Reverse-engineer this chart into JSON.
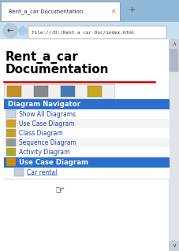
{
  "tab_title": "Rent_a_car Documentation",
  "url": "file:///D:/Rent a car Doc/index.html",
  "page_title_line1": "Rent_a_car",
  "page_title_line2": "Documentation",
  "red_line_color": "#cc0000",
  "browser_bg": "#aaccee",
  "tab_active_color": "#ffffff",
  "tab_bar_bg": "#90b8d8",
  "nav_bar_bg": "#c8dff0",
  "page_bg": "#ffffff",
  "section_header_bg": "#2b6fce",
  "section_header_text": "#ffffff",
  "section_header_label": "Diagram Navigator",
  "menu_items": [
    "Show All Diagrams",
    "Use Case Diagram",
    "Class Diagram",
    "Sequence Diagram",
    "Activity Diagram"
  ],
  "bottom_header_text": "Use Case Diagram",
  "bottom_item": "Car rental",
  "link_color": "#1a44aa",
  "scrollbar_bg": "#e0e4e8",
  "scrollbar_thumb": "#b0b8c8",
  "toolbar_bg": "#f0f0f0",
  "toolbar_border": "#c0c0c0"
}
